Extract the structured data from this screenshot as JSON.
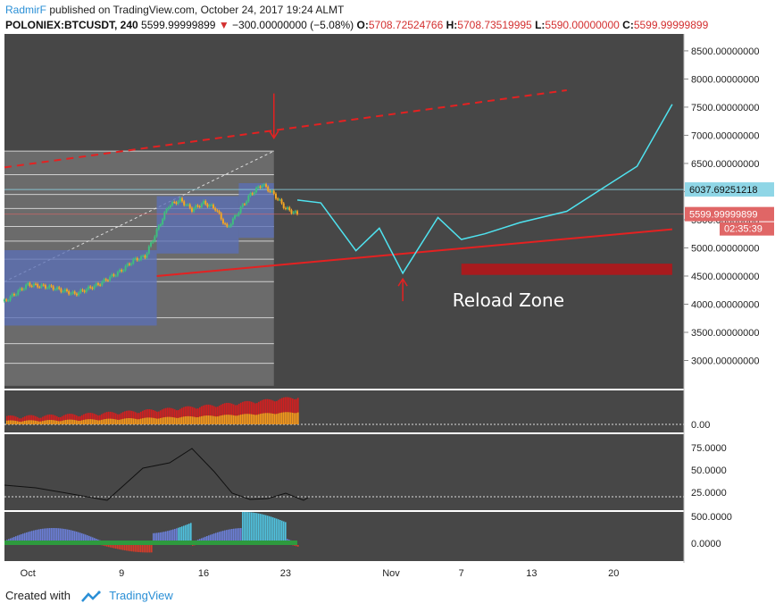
{
  "header": {
    "author": "RadmirF",
    "published_text": "published on TradingView.com, October 24, 2017 19:24 ALMT",
    "symbol": "POLONIEX:BTCUSDT, 240",
    "last_price": "5599.99999899",
    "change_arrow": "▼",
    "change": "−300.00000000 (−5.08%)",
    "o_label": "O:",
    "o_value": "5708.72524766",
    "h_label": "H:",
    "h_value": "5708.73519995",
    "l_label": "L:",
    "l_value": "5590.00000000",
    "c_label": "C:",
    "c_value": "5599.99999899"
  },
  "footer": {
    "created_with": "Created with",
    "brand": "TradingView"
  },
  "colors": {
    "panel_bg": "#474747",
    "forecast": "#4fe3f0",
    "trend": "#e52121",
    "reload_zone": "#b3161a",
    "price_up": "#3fbf7f",
    "price_down": "#f5a623",
    "price_tag_bg": "#e06666",
    "level_tag_bg": "#8fd6e6"
  },
  "chart_data": {
    "type": "line",
    "symbol": "POLONIEX:BTCUSDT",
    "interval": "240",
    "x_axis": {
      "ticks": [
        "Oct",
        "9",
        "16",
        "23",
        "Nov",
        "7",
        "13",
        "20"
      ],
      "tick_dates": [
        "2017-10-01",
        "2017-10-09",
        "2017-10-16",
        "2017-10-23",
        "2017-11-01",
        "2017-11-07",
        "2017-11-13",
        "2017-11-20"
      ],
      "range": [
        "2017-09-29",
        "2017-11-26"
      ]
    },
    "y_axis": {
      "ylim": [
        2500,
        8800
      ],
      "ticks": [
        "3000.00000000",
        "3500.00000000",
        "4000.00000000",
        "4500.00000000",
        "5000.00000000",
        "5500.00000000",
        "6000.00000000",
        "6500.00000000",
        "7000.00000000",
        "7500.00000000",
        "8000.00000000",
        "8500.00000000"
      ],
      "tick_values": [
        3000,
        3500,
        4000,
        4500,
        5000,
        5500,
        6000,
        6500,
        7000,
        7500,
        8000,
        8500
      ]
    },
    "price_series": {
      "dates": [
        "2017-09-29",
        "2017-10-01",
        "2017-10-03",
        "2017-10-05",
        "2017-10-07",
        "2017-10-09",
        "2017-10-10",
        "2017-10-11",
        "2017-10-12",
        "2017-10-13",
        "2017-10-14",
        "2017-10-15",
        "2017-10-16",
        "2017-10-17",
        "2017-10-18",
        "2017-10-19",
        "2017-10-20",
        "2017-10-21",
        "2017-10-22",
        "2017-10-23",
        "2017-10-24"
      ],
      "values": [
        4050,
        4350,
        4300,
        4180,
        4350,
        4600,
        4780,
        4850,
        5300,
        5750,
        5850,
        5680,
        5800,
        5700,
        5350,
        5650,
        5950,
        6130,
        5950,
        5700,
        5600
      ]
    },
    "forecast_path": {
      "dates": [
        "2017-10-24",
        "2017-10-26",
        "2017-10-29",
        "2017-10-31",
        "2017-11-02",
        "2017-11-05",
        "2017-11-07",
        "2017-11-09",
        "2017-11-12",
        "2017-11-16",
        "2017-11-19",
        "2017-11-22",
        "2017-11-25"
      ],
      "values": [
        5850,
        5800,
        4950,
        5350,
        4550,
        5540,
        5150,
        5250,
        5450,
        5650,
        6050,
        6450,
        7550
      ]
    },
    "trendlines": [
      {
        "style": "dashed",
        "from": [
          "2017-09-29",
          6430
        ],
        "to": [
          "2017-11-16",
          7800
        ]
      },
      {
        "style": "solid",
        "from": [
          "2017-10-12",
          4500
        ],
        "to": [
          "2017-11-25",
          5330
        ]
      }
    ],
    "zone": {
      "label": "Reload Zone",
      "from": "2017-11-07",
      "to": "2017-11-25",
      "low": 4520,
      "high": 4720
    },
    "horizontal_levels": [
      {
        "value": 6037.69251218,
        "label": "6037.69251218"
      }
    ],
    "current_price": {
      "value": 5599.99999899,
      "label": "5599.99999899",
      "countdown": "02:35:39"
    },
    "arrows": [
      {
        "date": "2017-10-22",
        "price": 6950,
        "direction": "down"
      },
      {
        "date": "2017-11-02",
        "price": 4450,
        "direction": "up"
      }
    ],
    "indicators": [
      {
        "name": "volume-oscillator",
        "ticks": [
          "0.00"
        ],
        "tick_values": [
          0
        ]
      },
      {
        "name": "oscillator",
        "ticks": [
          "25.0000",
          "50.0000",
          "75.0000"
        ],
        "tick_values": [
          25,
          50,
          75
        ]
      },
      {
        "name": "histogram-oscillator",
        "ticks": [
          "0.0000",
          "500.0000"
        ],
        "tick_values": [
          0,
          500
        ]
      }
    ]
  }
}
